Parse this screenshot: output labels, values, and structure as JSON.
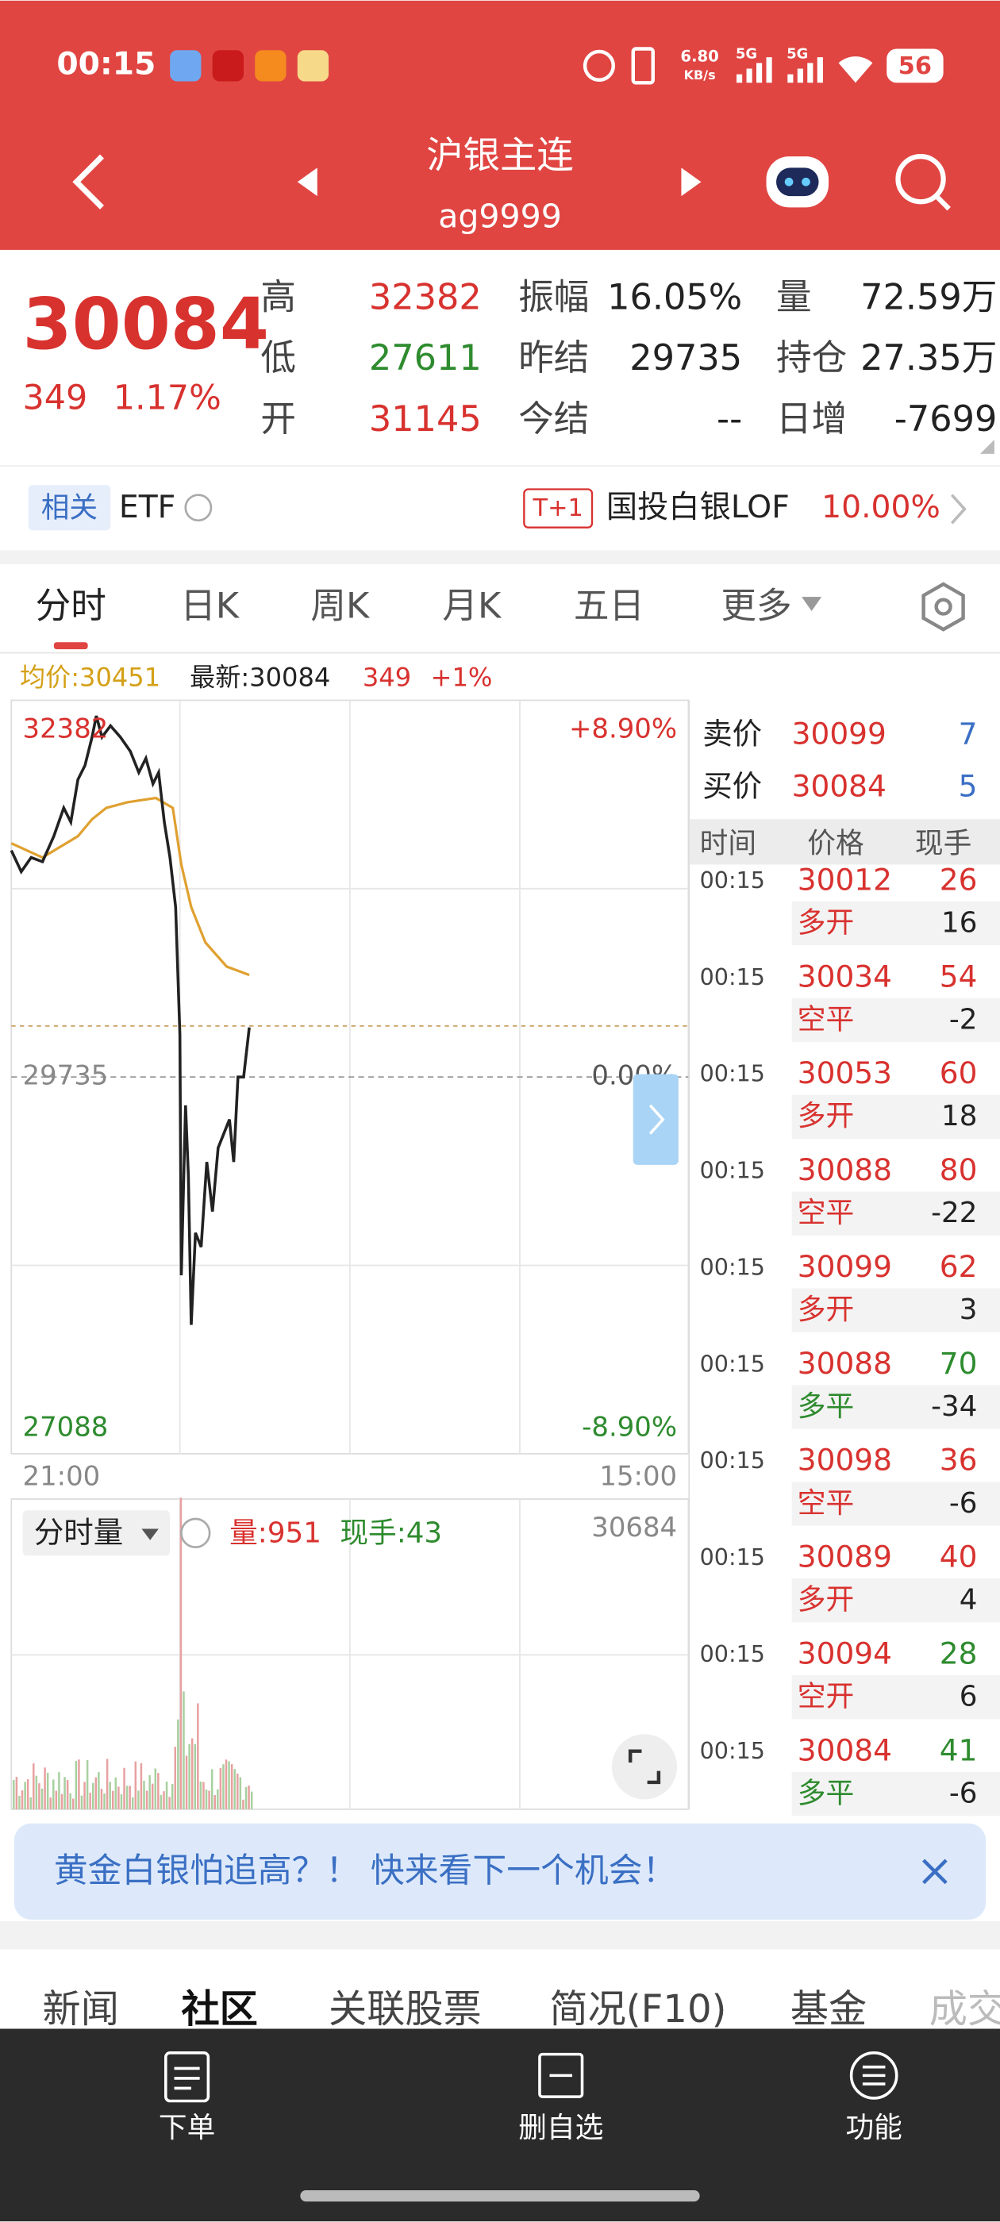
{
  "status_bar": {
    "time": "00:15",
    "speed": "6.80",
    "speed_unit": "KB/s",
    "net1": "5G",
    "net2": "5G",
    "battery": "56"
  },
  "header": {
    "title": "沪银主连",
    "code": "ag9999"
  },
  "quote": {
    "price": "30084",
    "change": "349",
    "change_pct": "1.17%",
    "stats": [
      [
        "高",
        "32382",
        "振幅",
        "16.05%",
        "量",
        "72.59万"
      ],
      [
        "低",
        "27611",
        "昨结",
        "29735",
        "持仓",
        "27.35万"
      ],
      [
        "开",
        "31145",
        "今结",
        "--",
        "日增",
        "-7699"
      ]
    ]
  },
  "etf": {
    "tag": "相关",
    "label": "ETF",
    "badge": "T+1",
    "name": "国投白银LOF",
    "pct": "10.00%"
  },
  "tabs": [
    "分时",
    "日K",
    "周K",
    "月K",
    "五日",
    "更多"
  ],
  "chart": {
    "avg": "均价:30451",
    "latest": "最新:30084",
    "change": "349",
    "pct": "+1%",
    "high": "32382",
    "high_pct": "+8.90%",
    "base": "29735",
    "base_pct": "0.00%",
    "low": "27088",
    "low_pct": "-8.90%",
    "start": "21:00",
    "end": "15:00"
  },
  "volume": {
    "label": "分时量",
    "vol": "量:951",
    "hand": "现手:43",
    "max": "30684"
  },
  "order_book": {
    "sell_label": "卖价",
    "sell_price": "30099",
    "sell_qty": "7",
    "buy_label": "买价",
    "buy_price": "30084",
    "buy_qty": "5"
  },
  "trades": {
    "headers": [
      "时间",
      "价格",
      "现手"
    ],
    "rows": [
      [
        "00:15",
        "30012",
        "26",
        "多开",
        "16"
      ],
      [
        "00:15",
        "30034",
        "54",
        "空平",
        "-2"
      ],
      [
        "00:15",
        "30053",
        "60",
        "多开",
        "18"
      ],
      [
        "00:15",
        "30088",
        "80",
        "空平",
        "-22"
      ],
      [
        "00:15",
        "30099",
        "62",
        "多开",
        "3"
      ],
      [
        "00:15",
        "30088",
        "70",
        "多平",
        "-34"
      ],
      [
        "00:15",
        "30098",
        "36",
        "空平",
        "-6"
      ],
      [
        "00:15",
        "30089",
        "40",
        "多开",
        "4"
      ],
      [
        "00:15",
        "30094",
        "28",
        "空开",
        "6"
      ],
      [
        "00:15",
        "30084",
        "41",
        "多平",
        "-6"
      ]
    ]
  },
  "banner": "黄金白银怕追高？！ 快来看下一个机会！",
  "bottom_tabs": [
    "新闻",
    "社区",
    "关联股票",
    "简况(F10)",
    "基金",
    "成交"
  ],
  "nav": [
    "下单",
    "删自选",
    "功能"
  ]
}
